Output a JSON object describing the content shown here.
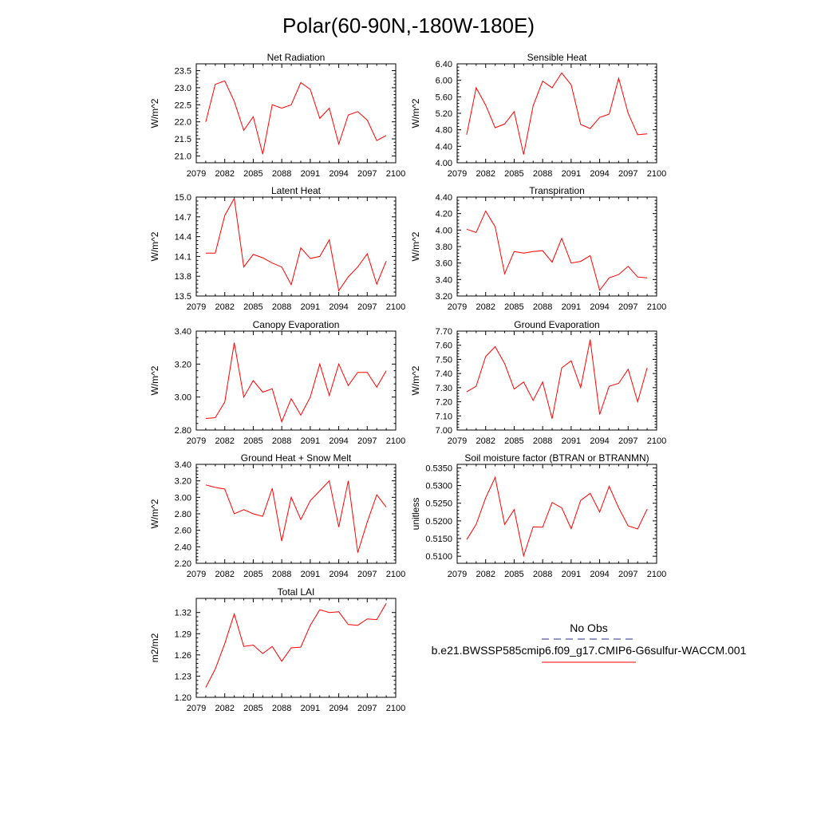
{
  "figure_title": "Polar(60-90N,-180W-180E)",
  "line_color": "#ff0000",
  "obs_dash_color": "#2b2b8f",
  "legend": {
    "obs_label": "No Obs",
    "model_label": "b.e21.BWSSP585cmip6.f09_g17.CMIP6-G6sulfur-WACCM.001"
  },
  "chart_data": [
    {
      "type": "line",
      "title": "Net Radiation",
      "ylabel": "W/m^2",
      "xlim": [
        2079,
        2100
      ],
      "xticks": [
        "2079",
        "2082",
        "2085",
        "2088",
        "2091",
        "2094",
        "2097",
        "2100"
      ],
      "ylim": [
        20.8,
        23.7
      ],
      "yticks": [
        "21.0",
        "21.5",
        "22.0",
        "22.5",
        "23.0",
        "23.5"
      ],
      "x": [
        2080,
        2081,
        2082,
        2083,
        2084,
        2085,
        2086,
        2087,
        2088,
        2089,
        2090,
        2091,
        2092,
        2093,
        2094,
        2095,
        2096,
        2097,
        2098,
        2099
      ],
      "values": [
        22.0,
        23.1,
        23.2,
        22.6,
        21.75,
        22.15,
        21.05,
        22.5,
        22.4,
        22.5,
        23.15,
        22.95,
        22.1,
        22.4,
        21.35,
        22.2,
        22.3,
        22.05,
        21.45,
        21.6
      ]
    },
    {
      "type": "line",
      "title": "Sensible Heat",
      "ylabel": "W/m^2",
      "xlim": [
        2079,
        2100
      ],
      "xticks": [
        "2079",
        "2082",
        "2085",
        "2088",
        "2091",
        "2094",
        "2097",
        "2100"
      ],
      "ylim": [
        4.0,
        6.4
      ],
      "yticks": [
        "4.00",
        "4.40",
        "4.80",
        "5.20",
        "5.60",
        "6.00",
        "6.40"
      ],
      "x": [
        2080,
        2081,
        2082,
        2083,
        2084,
        2085,
        2086,
        2087,
        2088,
        2089,
        2090,
        2091,
        2092,
        2093,
        2094,
        2095,
        2096,
        2097,
        2098,
        2099
      ],
      "values": [
        4.68,
        5.82,
        5.4,
        4.85,
        4.94,
        5.24,
        4.2,
        5.38,
        5.98,
        5.82,
        6.18,
        5.89,
        4.93,
        4.83,
        5.1,
        5.18,
        6.05,
        5.2,
        4.68,
        4.7
      ]
    },
    {
      "type": "line",
      "title": "Latent Heat",
      "ylabel": "W/m^2",
      "xlim": [
        2079,
        2100
      ],
      "xticks": [
        "2079",
        "2082",
        "2085",
        "2088",
        "2091",
        "2094",
        "2097",
        "2100"
      ],
      "ylim": [
        13.5,
        15.0
      ],
      "yticks": [
        "13.5",
        "13.8",
        "14.1",
        "14.4",
        "14.7",
        "15.0"
      ],
      "x": [
        2080,
        2081,
        2082,
        2083,
        2084,
        2085,
        2086,
        2087,
        2088,
        2089,
        2090,
        2091,
        2092,
        2093,
        2094,
        2095,
        2096,
        2097,
        2098,
        2099
      ],
      "values": [
        14.15,
        14.15,
        14.72,
        14.98,
        13.94,
        14.13,
        14.08,
        14.0,
        13.94,
        13.67,
        14.23,
        14.07,
        14.1,
        14.35,
        13.58,
        13.79,
        13.94,
        14.14,
        13.68,
        14.03
      ]
    },
    {
      "type": "line",
      "title": "Transpiration",
      "ylabel": "W/m^2",
      "xlim": [
        2079,
        2100
      ],
      "xticks": [
        "2079",
        "2082",
        "2085",
        "2088",
        "2091",
        "2094",
        "2097",
        "2100"
      ],
      "ylim": [
        3.2,
        4.4
      ],
      "yticks": [
        "3.20",
        "3.40",
        "3.60",
        "3.80",
        "4.00",
        "4.20",
        "4.40"
      ],
      "x": [
        2080,
        2081,
        2082,
        2083,
        2084,
        2085,
        2086,
        2087,
        2088,
        2089,
        2090,
        2091,
        2092,
        2093,
        2094,
        2095,
        2096,
        2097,
        2098,
        2099
      ],
      "values": [
        4.01,
        3.97,
        4.23,
        4.04,
        3.47,
        3.74,
        3.72,
        3.74,
        3.75,
        3.61,
        3.9,
        3.6,
        3.62,
        3.69,
        3.27,
        3.42,
        3.46,
        3.56,
        3.43,
        3.42
      ]
    },
    {
      "type": "line",
      "title": "Canopy Evaporation",
      "ylabel": "W/m^2",
      "xlim": [
        2079,
        2100
      ],
      "xticks": [
        "2079",
        "2082",
        "2085",
        "2088",
        "2091",
        "2094",
        "2097",
        "2100"
      ],
      "ylim": [
        2.8,
        3.4
      ],
      "yticks": [
        "2.80",
        "3.00",
        "3.20",
        "3.40"
      ],
      "x": [
        2080,
        2081,
        2082,
        2083,
        2084,
        2085,
        2086,
        2087,
        2088,
        2089,
        2090,
        2091,
        2092,
        2093,
        2094,
        2095,
        2096,
        2097,
        2098,
        2099
      ],
      "values": [
        2.87,
        2.875,
        2.97,
        3.33,
        3.0,
        3.1,
        3.03,
        3.05,
        2.85,
        2.99,
        2.89,
        3.0,
        3.2,
        3.01,
        3.2,
        3.07,
        3.15,
        3.15,
        3.06,
        3.16
      ]
    },
    {
      "type": "line",
      "title": "Ground Evaporation",
      "ylabel": "W/m^2",
      "xlim": [
        2079,
        2100
      ],
      "xticks": [
        "2079",
        "2082",
        "2085",
        "2088",
        "2091",
        "2094",
        "2097",
        "2100"
      ],
      "ylim": [
        7.0,
        7.7
      ],
      "yticks": [
        "7.00",
        "7.10",
        "7.20",
        "7.30",
        "7.40",
        "7.50",
        "7.60",
        "7.70"
      ],
      "x": [
        2080,
        2081,
        2082,
        2083,
        2084,
        2085,
        2086,
        2087,
        2088,
        2089,
        2090,
        2091,
        2092,
        2093,
        2094,
        2095,
        2096,
        2097,
        2098,
        2099
      ],
      "values": [
        7.27,
        7.31,
        7.52,
        7.59,
        7.47,
        7.29,
        7.34,
        7.21,
        7.34,
        7.08,
        7.44,
        7.49,
        7.3,
        7.64,
        7.11,
        7.31,
        7.33,
        7.43,
        7.2,
        7.44
      ]
    },
    {
      "type": "line",
      "title": "Ground Heat + Snow Melt",
      "ylabel": "W/m^2",
      "xlim": [
        2079,
        2100
      ],
      "xticks": [
        "2079",
        "2082",
        "2085",
        "2088",
        "2091",
        "2094",
        "2097",
        "2100"
      ],
      "ylim": [
        2.2,
        3.4
      ],
      "yticks": [
        "2.20",
        "2.40",
        "2.60",
        "2.80",
        "3.00",
        "3.20",
        "3.40"
      ],
      "x": [
        2080,
        2081,
        2082,
        2083,
        2084,
        2085,
        2086,
        2087,
        2088,
        2089,
        2090,
        2091,
        2092,
        2093,
        2094,
        2095,
        2096,
        2097,
        2098,
        2099
      ],
      "values": [
        3.15,
        3.12,
        3.1,
        2.8,
        2.85,
        2.8,
        2.77,
        3.11,
        2.47,
        3.0,
        2.73,
        2.96,
        3.08,
        3.2,
        2.64,
        3.2,
        2.33,
        2.7,
        3.03,
        2.88
      ]
    },
    {
      "type": "line",
      "title": "Soil moisture factor (BTRAN or BTRANMN)",
      "ylabel": "unitless",
      "xlim": [
        2079,
        2100
      ],
      "xticks": [
        "2079",
        "2082",
        "2085",
        "2088",
        "2091",
        "2094",
        "2097",
        "2100"
      ],
      "ylim": [
        0.508,
        0.536
      ],
      "yticks": [
        "0.5100",
        "0.5150",
        "0.5200",
        "0.5250",
        "0.5300",
        "0.5350"
      ],
      "x": [
        2080,
        2081,
        2082,
        2083,
        2084,
        2085,
        2086,
        2087,
        2088,
        2089,
        2090,
        2091,
        2092,
        2093,
        2094,
        2095,
        2096,
        2097,
        2098,
        2099
      ],
      "values": [
        0.5147,
        0.519,
        0.5265,
        0.5323,
        0.519,
        0.5232,
        0.5101,
        0.5183,
        0.5182,
        0.5252,
        0.5237,
        0.5178,
        0.5258,
        0.5278,
        0.5225,
        0.5298,
        0.5237,
        0.5186,
        0.5177,
        0.5233
      ]
    },
    {
      "type": "line",
      "title": "Total LAI",
      "ylabel": "m2/m2",
      "xlim": [
        2079,
        2100
      ],
      "xticks": [
        "2079",
        "2082",
        "2085",
        "2088",
        "2091",
        "2094",
        "2097",
        "2100"
      ],
      "ylim": [
        1.2,
        1.34
      ],
      "yticks": [
        "1.20",
        "1.23",
        "1.26",
        "1.29",
        "1.32"
      ],
      "x": [
        2080,
        2081,
        2082,
        2083,
        2084,
        2085,
        2086,
        2087,
        2088,
        2089,
        2090,
        2091,
        2092,
        2093,
        2094,
        2095,
        2096,
        2097,
        2098,
        2099
      ],
      "values": [
        1.214,
        1.24,
        1.276,
        1.318,
        1.272,
        1.274,
        1.262,
        1.272,
        1.251,
        1.27,
        1.271,
        1.302,
        1.324,
        1.32,
        1.321,
        1.303,
        1.302,
        1.311,
        1.31,
        1.333
      ]
    }
  ]
}
